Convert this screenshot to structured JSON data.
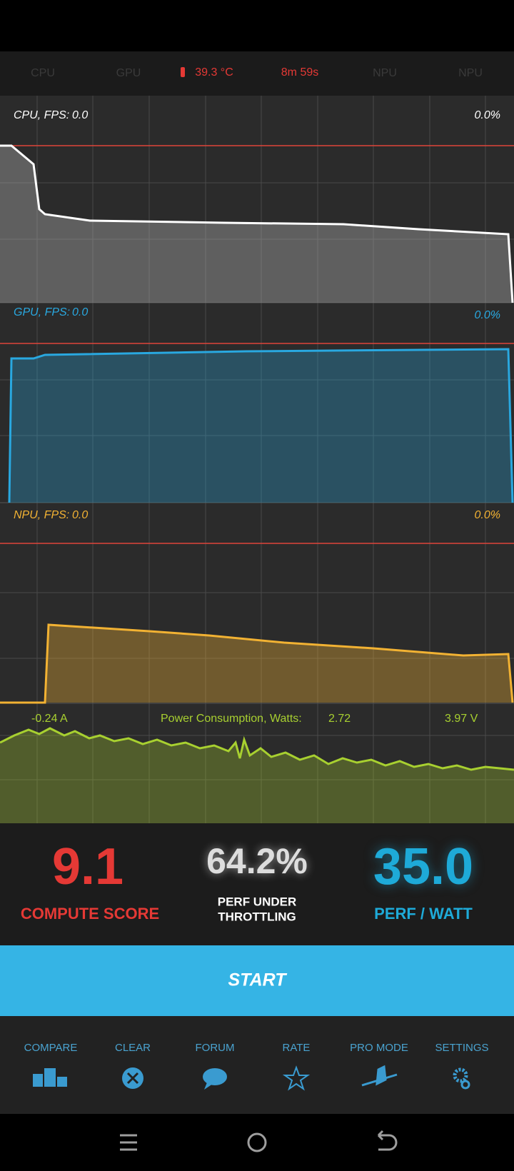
{
  "status_bar": {
    "items": [
      "CPU",
      "GPU",
      "39.3 °C",
      "8m 59s",
      "NPU",
      "NPU"
    ]
  },
  "panels": [
    {
      "label": "CPU, FPS:",
      "fps": "0.0",
      "percent": "0.0%"
    },
    {
      "label": "GPU, FPS:",
      "fps": "0.0",
      "percent": "0.0%"
    },
    {
      "label": "NPU, FPS:",
      "fps": "0.0",
      "percent": "0.0%"
    }
  ],
  "power": {
    "current": "-0.24 A",
    "label": "Power Consumption, Watts:",
    "watts": "2.72",
    "voltage": "3.97 V"
  },
  "scores": [
    {
      "value": "9.1",
      "label_lines": [
        "COMPUTE SCORE"
      ]
    },
    {
      "value": "64.2%",
      "label_lines": [
        "PERF UNDER",
        "THROTTLING"
      ]
    },
    {
      "value": "35.0",
      "label_lines": [
        "PERF / WATT"
      ]
    }
  ],
  "start_button": "START",
  "nav": [
    "COMPARE",
    "CLEAR",
    "FORUM",
    "RATE",
    "PRO MODE",
    "SETTINGS"
  ]
}
